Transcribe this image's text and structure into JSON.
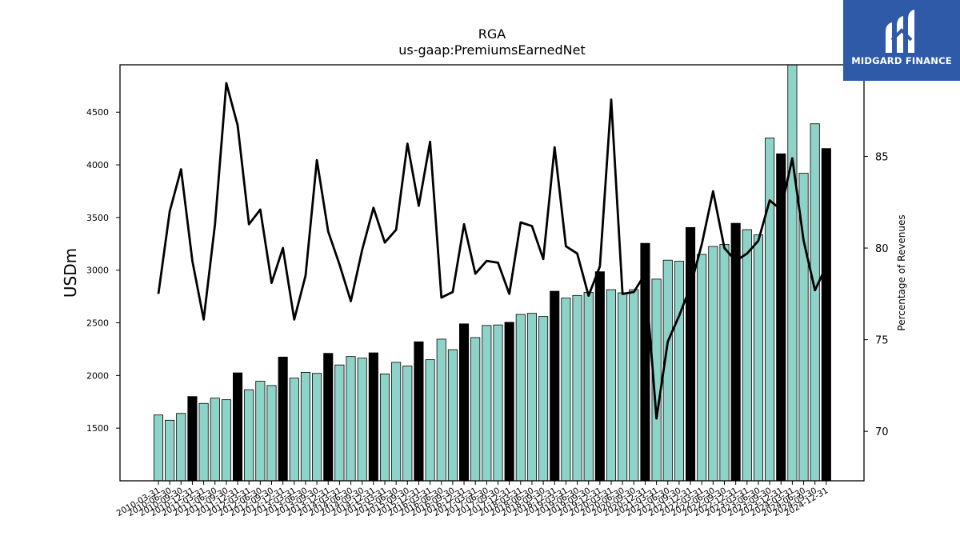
{
  "chart_data": {
    "type": "bar+line",
    "title": "RGA",
    "subtitle": "us-gaap:PremiumsEarnedNet",
    "ylabel": "USDm",
    "y2label": "Percentage of Revenues",
    "ylim": [
      1000,
      4950
    ],
    "y2lim": [
      67.3,
      90
    ],
    "yticks": [
      1500,
      2000,
      2500,
      3000,
      3500,
      4000,
      4500
    ],
    "y2ticks": [
      70,
      75,
      80,
      85
    ],
    "x": [
      "2010-03-31",
      "2010-06-30",
      "2010-09-30",
      "2010-12-31",
      "2011-03-31",
      "2011-06-30",
      "2011-09-30",
      "2011-12-31",
      "2012-03-31",
      "2012-06-30",
      "2012-09-30",
      "2012-12-31",
      "2013-03-31",
      "2013-06-30",
      "2013-09-30",
      "2013-12-31",
      "2014-03-31",
      "2014-06-30",
      "2014-09-30",
      "2014-12-31",
      "2015-03-31",
      "2015-06-30",
      "2015-09-30",
      "2015-12-31",
      "2016-03-31",
      "2016-06-30",
      "2016-09-30",
      "2016-12-31",
      "2017-03-31",
      "2017-06-30",
      "2017-09-30",
      "2017-12-31",
      "2018-03-31",
      "2018-06-30",
      "2018-09-30",
      "2018-12-31",
      "2019-03-31",
      "2019-06-30",
      "2019-09-30",
      "2019-12-31",
      "2020-03-31",
      "2020-06-30",
      "2020-09-30",
      "2020-12-31",
      "2021-03-31",
      "2021-06-30",
      "2021-09-30",
      "2021-12-31",
      "2022-03-31",
      "2022-06-30",
      "2022-09-30",
      "2022-12-31",
      "2023-03-31",
      "2023-06-30",
      "2023-09-30",
      "2023-12-31",
      "2024-03-31",
      "2024-06-30",
      "2024-09-30",
      "2024-12-31"
    ],
    "series": [
      {
        "type": "bar",
        "values": [
          1625,
          1575,
          1640,
          1800,
          1735,
          1785,
          1770,
          2025,
          1865,
          1945,
          1905,
          2175,
          1975,
          2030,
          2020,
          2210,
          2100,
          2180,
          2165,
          2215,
          2015,
          2125,
          2090,
          2320,
          2150,
          2345,
          2245,
          2490,
          2360,
          2475,
          2480,
          2505,
          2580,
          2590,
          2560,
          2800,
          2735,
          2760,
          2790,
          2985,
          2815,
          2785,
          2815,
          3255,
          2915,
          3095,
          3085,
          3405,
          3150,
          3225,
          3245,
          3445,
          3385,
          3335,
          4255,
          4105,
          4960,
          3920,
          4390,
          4155
        ],
        "colors": [
          "#8dd3c7",
          "#8dd3c7",
          "#8dd3c7",
          "#000000",
          "#8dd3c7",
          "#8dd3c7",
          "#8dd3c7",
          "#000000",
          "#8dd3c7",
          "#8dd3c7",
          "#8dd3c7",
          "#000000",
          "#8dd3c7",
          "#8dd3c7",
          "#8dd3c7",
          "#000000",
          "#8dd3c7",
          "#8dd3c7",
          "#8dd3c7",
          "#000000",
          "#8dd3c7",
          "#8dd3c7",
          "#8dd3c7",
          "#000000",
          "#8dd3c7",
          "#8dd3c7",
          "#8dd3c7",
          "#000000",
          "#8dd3c7",
          "#8dd3c7",
          "#8dd3c7",
          "#000000",
          "#8dd3c7",
          "#8dd3c7",
          "#8dd3c7",
          "#000000",
          "#8dd3c7",
          "#8dd3c7",
          "#8dd3c7",
          "#000000",
          "#8dd3c7",
          "#8dd3c7",
          "#8dd3c7",
          "#000000",
          "#8dd3c7",
          "#8dd3c7",
          "#8dd3c7",
          "#000000",
          "#8dd3c7",
          "#8dd3c7",
          "#8dd3c7",
          "#000000",
          "#8dd3c7",
          "#8dd3c7",
          "#8dd3c7",
          "#000000",
          "#8dd3c7",
          "#8dd3c7",
          "#8dd3c7",
          "#000000"
        ]
      },
      {
        "type": "line",
        "axis": "right",
        "color": "#000000",
        "values": [
          77.5,
          82.0,
          84.3,
          79.3,
          76.1,
          81.3,
          89.0,
          86.7,
          81.3,
          82.1,
          78.1,
          80.0,
          76.1,
          78.5,
          84.8,
          80.9,
          79.1,
          77.1,
          79.9,
          82.2,
          80.3,
          81.0,
          85.7,
          82.3,
          85.8,
          77.3,
          77.6,
          81.3,
          78.6,
          79.3,
          79.2,
          77.5,
          81.4,
          81.2,
          79.4,
          85.5,
          80.1,
          79.7,
          77.4,
          79.0,
          88.1,
          77.5,
          77.6,
          78.6,
          70.7,
          74.9,
          76.3,
          77.9,
          80.2,
          83.1,
          80.0,
          79.3,
          79.7,
          80.4,
          82.6,
          82.1,
          84.9,
          80.4,
          77.7,
          79.0
        ]
      }
    ],
    "legend": "none",
    "grid": false
  },
  "branding": {
    "logo_text": "MIDGARD FINANCE",
    "logo_color": "#2f5aa8"
  }
}
